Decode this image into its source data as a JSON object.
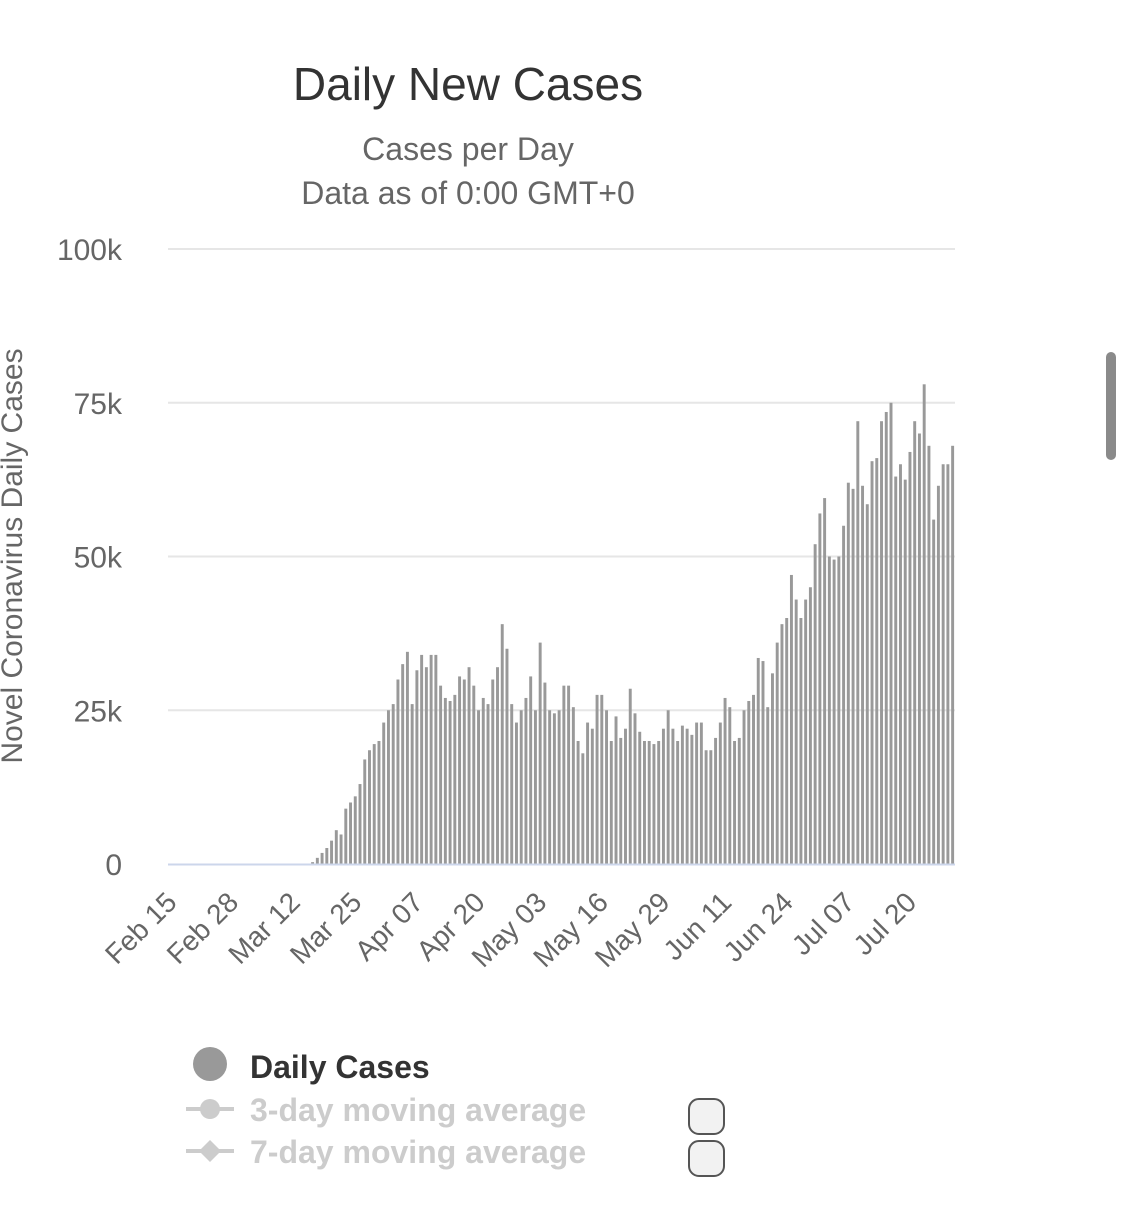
{
  "chart_data": {
    "type": "bar",
    "title": "Daily New Cases",
    "subtitle": [
      "Cases per Day",
      "Data as of 0:00 GMT+0"
    ],
    "ylabel": "Novel Coronavirus Daily Cases",
    "xlabel": "",
    "ylim": [
      0,
      100000
    ],
    "yticks": [
      0,
      25000,
      50000,
      75000,
      100000
    ],
    "ytick_labels": [
      "0",
      "25k",
      "50k",
      "75k",
      "100k"
    ],
    "xtick_labels": [
      "Feb 15",
      "Feb 28",
      "Mar 12",
      "Mar 25",
      "Apr 07",
      "Apr 20",
      "May 03",
      "May 16",
      "May 29",
      "Jun 11",
      "Jun 24",
      "Jul 07",
      "Jul 20"
    ],
    "first_date": "Feb 15",
    "last_date": "Jul 30",
    "grid": true,
    "bar_color": "#999999",
    "series": [
      {
        "name": "Daily Cases",
        "values": [
          0,
          0,
          0,
          0,
          0,
          0,
          0,
          0,
          0,
          0,
          0,
          0,
          0,
          0,
          0,
          0,
          0,
          0,
          0,
          0,
          0,
          0,
          0,
          0,
          0,
          0,
          0,
          0,
          0,
          50,
          300,
          1000,
          1800,
          2600,
          3800,
          5500,
          4800,
          9000,
          10000,
          11000,
          13000,
          17000,
          18500,
          19500,
          20000,
          23000,
          25000,
          26000,
          30000,
          32500,
          34500,
          26000,
          31500,
          34000,
          32000,
          34000,
          34000,
          29000,
          27000,
          26500,
          27500,
          30500,
          30000,
          32000,
          29000,
          25000,
          27000,
          26000,
          30000,
          32000,
          39000,
          35000,
          26000,
          23000,
          25000,
          27000,
          30500,
          25000,
          36000,
          29500,
          25000,
          24500,
          25000,
          29000,
          29000,
          25500,
          20000,
          18000,
          23000,
          22000,
          27500,
          27500,
          25000,
          20000,
          24000,
          20500,
          22000,
          28500,
          24500,
          21500,
          20000,
          20000,
          19500,
          20000,
          22000,
          25000,
          22000,
          20000,
          22500,
          22000,
          21000,
          23000,
          23000,
          18500,
          18500,
          20500,
          23000,
          27000,
          25500,
          20000,
          20500,
          25000,
          26500,
          27500,
          33500,
          33000,
          25500,
          31000,
          36000,
          39000,
          40000,
          47000,
          43000,
          40000,
          43000,
          45000,
          52000,
          57000,
          59500,
          50000,
          49500,
          50000,
          55000,
          62000,
          61000,
          72000,
          61500,
          58500,
          65500,
          66000,
          72000,
          73500,
          75000,
          63000,
          65000,
          62500,
          67000,
          72000,
          70000,
          78000,
          68000,
          56000,
          61500,
          65000,
          65000,
          68000
        ]
      }
    ],
    "legend": [
      {
        "name": "Daily Cases",
        "active": true
      },
      {
        "name": "3-day moving average",
        "active": false
      },
      {
        "name": "7-day moving average",
        "active": false
      }
    ]
  }
}
